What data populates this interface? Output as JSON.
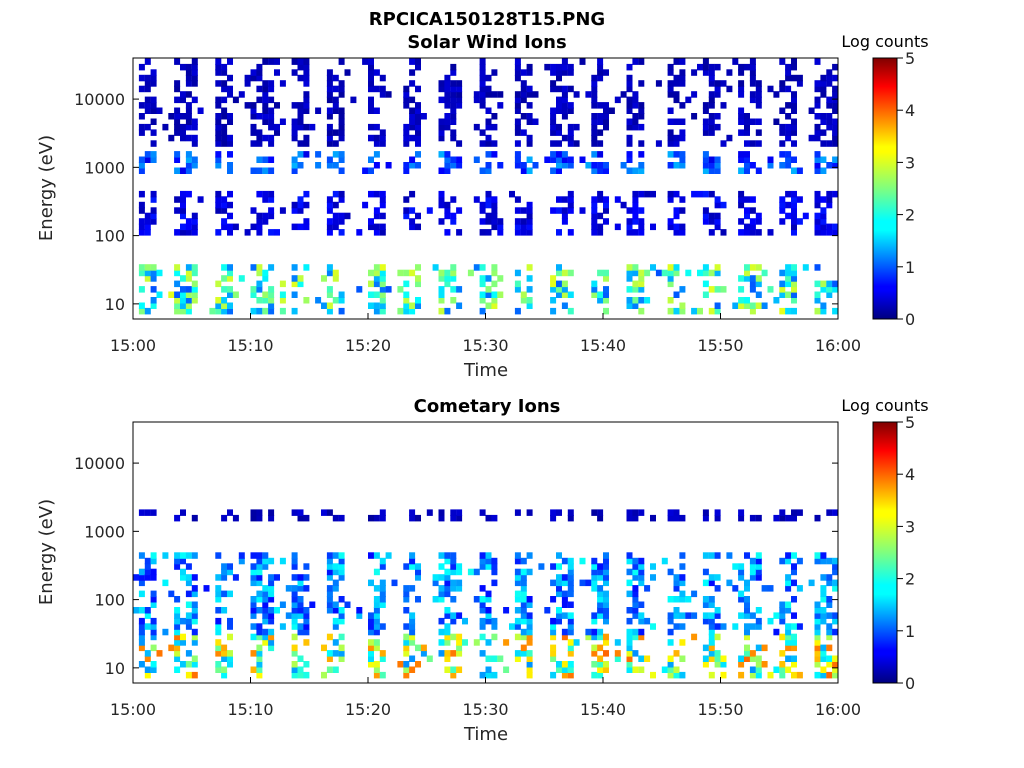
{
  "figure_title": "RPCICA150128T15.PNG",
  "chart_data": [
    {
      "type": "heatmap",
      "title": "Solar Wind Ions",
      "xlabel": "Time",
      "ylabel": "Energy (eV)",
      "xticks": [
        "15:00",
        "15:10",
        "15:20",
        "15:30",
        "15:40",
        "15:50",
        "16:00"
      ],
      "xlim_minutes": [
        0,
        60
      ],
      "yscale": "log",
      "ylim": [
        6,
        40000
      ],
      "yticks": [
        10,
        100,
        1000,
        10000
      ],
      "ytick_labels": [
        "10",
        "100",
        "1000",
        "10000"
      ],
      "colorbar": {
        "title": "Log counts",
        "range": [
          0,
          5
        ],
        "ticks": [
          "0",
          "1",
          "2",
          "3",
          "4",
          "5"
        ],
        "colormap": "jet"
      },
      "sweep_period_minutes": 3.2,
      "sweep_start_minutes": 0.3,
      "bands": [
        {
          "emin": 7,
          "emax": 35,
          "level": 2.0
        },
        {
          "emin": 100,
          "emax": 400,
          "level": 0.5
        },
        {
          "emin": 800,
          "emax": 1600,
          "level": 1.0
        },
        {
          "emin": 2000,
          "emax": 35000,
          "level": 0.3
        }
      ]
    },
    {
      "type": "heatmap",
      "title": "Cometary Ions",
      "xlabel": "Time",
      "ylabel": "Energy (eV)",
      "xticks": [
        "15:00",
        "15:10",
        "15:20",
        "15:30",
        "15:40",
        "15:50",
        "16:00"
      ],
      "xlim_minutes": [
        0,
        60
      ],
      "yscale": "log",
      "ylim": [
        6,
        40000
      ],
      "yticks": [
        10,
        100,
        1000,
        10000
      ],
      "ytick_labels": [
        "10",
        "100",
        "1000",
        "10000"
      ],
      "colorbar": {
        "title": "Log counts",
        "range": [
          0,
          5
        ],
        "ticks": [
          "0",
          "1",
          "2",
          "3",
          "4",
          "5"
        ],
        "colormap": "jet"
      },
      "sweep_period_minutes": 3.2,
      "sweep_start_minutes": 0.3,
      "bands": [
        {
          "emin": 7,
          "emax": 30,
          "level": 2.6
        },
        {
          "emin": 30,
          "emax": 450,
          "level": 1.3
        },
        {
          "emin": 1400,
          "emax": 2000,
          "level": 0.3
        }
      ]
    }
  ]
}
